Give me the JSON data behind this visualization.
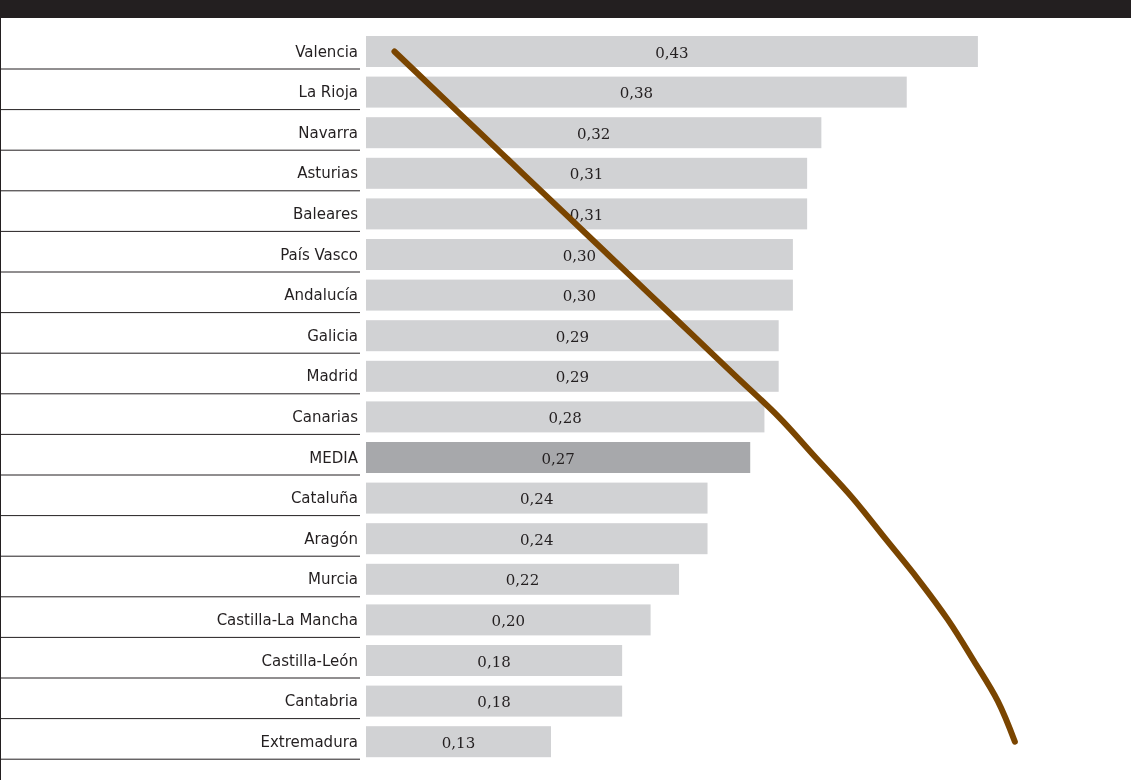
{
  "chart_data": {
    "type": "bar",
    "orientation": "horizontal",
    "categories": [
      "Valencia",
      "La Rioja",
      "Navarra",
      "Asturias",
      "Baleares",
      "País Vasco",
      "Andalucía",
      "Galicia",
      "Madrid",
      "Canarias",
      "MEDIA",
      "Cataluña",
      "Aragón",
      "Murcia",
      "Castilla-La Mancha",
      "Castilla-León",
      "Cantabria",
      "Extremadura"
    ],
    "series": [
      {
        "type": "bar",
        "values": [
          0.43,
          0.38,
          0.32,
          0.31,
          0.31,
          0.3,
          0.3,
          0.29,
          0.29,
          0.28,
          0.27,
          0.24,
          0.24,
          0.22,
          0.2,
          0.18,
          0.18,
          0.13
        ],
        "colors": [
          "#d1d2d4",
          "#d1d2d4",
          "#d1d2d4",
          "#d1d2d4",
          "#d1d2d4",
          "#d1d2d4",
          "#d1d2d4",
          "#d1d2d4",
          "#d1d2d4",
          "#d1d2d4",
          "#a7a8ab",
          "#d1d2d4",
          "#d1d2d4",
          "#d1d2d4",
          "#d1d2d4",
          "#d1d2d4",
          "#d1d2d4",
          "#d1d2d4"
        ],
        "value_labels": [
          "0,43",
          "0,38",
          "0,32",
          "0,31",
          "0,31",
          "0,30",
          "0,30",
          "0,29",
          "0,29",
          "0,28",
          "0,27",
          "0,24",
          "0,24",
          "0,22",
          "0,20",
          "0,18",
          "0,18",
          "0,13"
        ]
      },
      {
        "type": "line",
        "color": "#7a4500",
        "values": [
          0.02,
          0.05,
          0.08,
          0.11,
          0.14,
          0.17,
          0.2,
          0.23,
          0.26,
          0.29,
          0.316,
          0.342,
          0.365,
          0.388,
          0.409,
          0.427,
          0.444,
          0.456
        ]
      }
    ]
  }
}
